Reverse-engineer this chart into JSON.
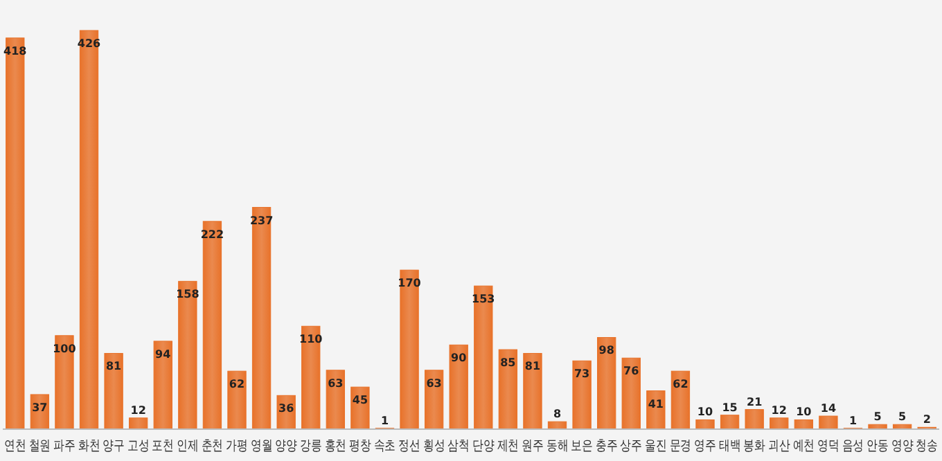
{
  "chart_data": {
    "type": "bar",
    "categories": [
      "연천",
      "철원",
      "파주",
      "화천",
      "양구",
      "고성",
      "포천",
      "인제",
      "춘천",
      "가평",
      "영월",
      "양양",
      "강릉",
      "홍천",
      "평창",
      "속초",
      "정선",
      "횡성",
      "삼척",
      "단양",
      "제천",
      "원주",
      "동해",
      "보은",
      "충주",
      "상주",
      "울진",
      "문경",
      "영주",
      "태백",
      "봉화",
      "괴산",
      "예천",
      "영덕",
      "음성",
      "안동",
      "영양",
      "청송"
    ],
    "values": [
      418,
      37,
      100,
      426,
      81,
      12,
      94,
      158,
      222,
      62,
      237,
      36,
      110,
      63,
      45,
      1,
      170,
      63,
      90,
      153,
      85,
      81,
      8,
      73,
      98,
      76,
      41,
      62,
      10,
      15,
      21,
      12,
      10,
      14,
      1,
      5,
      5,
      2
    ],
    "color": "#e8722a",
    "data_labels": true
  }
}
